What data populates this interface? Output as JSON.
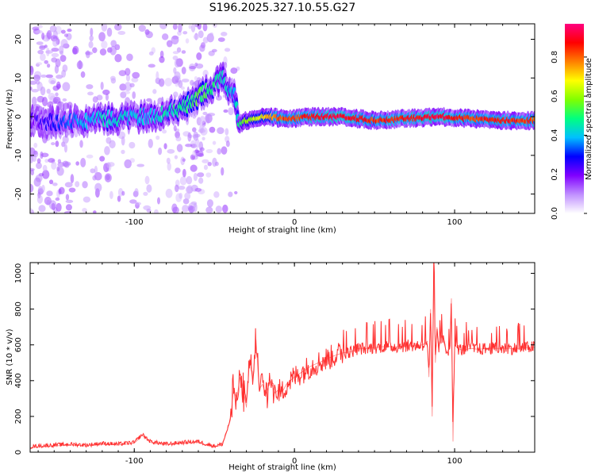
{
  "title": "S196.2025.327.10.55.G27",
  "chart_data": [
    {
      "type": "heatmap",
      "title": "S196.2025.327.10.55.G27",
      "xlabel": "Height of straight line (km)",
      "ylabel": "Frequency (Hz)",
      "xlim": [
        -165,
        150
      ],
      "ylim": [
        -25,
        24
      ],
      "xticks": [
        "-100",
        "0",
        "100"
      ],
      "xtick_values": [
        -100,
        0,
        100
      ],
      "yticks": [
        "20",
        "10",
        "0",
        "-10",
        "-20"
      ],
      "ytick_values": [
        20,
        10,
        0,
        -10,
        -20
      ],
      "colorbar": {
        "label": "Normalized spectral amplitude",
        "ticks": [
          "0.0",
          "0.2",
          "0.4",
          "0.6",
          "0.8"
        ],
        "tick_values": [
          0.0,
          0.2,
          0.4,
          0.6,
          0.8
        ],
        "range": [
          0,
          0.97
        ],
        "colors": [
          "#ffffff",
          "#c090ff",
          "#8000ff",
          "#0000ff",
          "#00c0ff",
          "#00ff80",
          "#80ff00",
          "#ffff00",
          "#ff8000",
          "#ff0000",
          "#ff0080"
        ]
      },
      "ridge": {
        "x": [
          -165,
          -150,
          -140,
          -130,
          -120,
          -110,
          -100,
          -90,
          -80,
          -70,
          -60,
          -50,
          -45,
          -40,
          -37,
          -35,
          -30,
          -20,
          -10,
          0,
          10,
          30,
          50,
          70,
          90,
          110,
          130,
          150
        ],
        "freq": [
          -1,
          -1.5,
          -1,
          -1,
          -0.5,
          -0.5,
          0,
          0,
          1,
          2,
          5,
          8,
          10,
          6,
          5,
          -2,
          -1,
          0,
          -0.3,
          -0.5,
          0,
          0,
          -1,
          -0.5,
          0,
          -0.5,
          -1,
          -1
        ],
        "amp": [
          0.2,
          0.3,
          0.35,
          0.4,
          0.45,
          0.45,
          0.4,
          0.4,
          0.45,
          0.5,
          0.55,
          0.5,
          0.45,
          0.4,
          0.4,
          0.5,
          0.6,
          0.7,
          0.85,
          0.85,
          0.9,
          0.95,
          0.85,
          0.9,
          0.95,
          0.85,
          0.9,
          0.85
        ]
      }
    },
    {
      "type": "line",
      "xlabel": "Height of straight line (km)",
      "ylabel": "SNR (10 * v/v)",
      "xlim": [
        -165,
        150
      ],
      "ylim": [
        0,
        1060
      ],
      "xticks": [
        "-100",
        "0",
        "100"
      ],
      "xtick_values": [
        -100,
        0,
        100
      ],
      "yticks": [
        "0",
        "200",
        "400",
        "600",
        "800",
        "1000"
      ],
      "ytick_values": [
        0,
        200,
        400,
        600,
        800,
        1000
      ],
      "color": "#ff3030",
      "series": [
        {
          "name": "SNR",
          "x": [
            -165,
            -160,
            -150,
            -140,
            -130,
            -120,
            -110,
            -100,
            -96,
            -95,
            -90,
            -80,
            -70,
            -60,
            -55,
            -50,
            -45,
            -42,
            -40,
            -38,
            -36,
            -34,
            -32,
            -30,
            -28,
            -26,
            -24,
            -22,
            -20,
            -18,
            -15,
            -12,
            -10,
            -8,
            -5,
            0,
            5,
            10,
            15,
            20,
            25,
            30,
            35,
            40,
            45,
            50,
            55,
            60,
            65,
            70,
            75,
            80,
            83,
            84,
            85,
            86,
            87,
            88,
            89,
            90,
            92,
            95,
            97,
            98,
            99,
            100,
            102,
            105,
            110,
            115,
            120,
            125,
            130,
            135,
            140,
            145,
            148,
            150
          ],
          "y": [
            25,
            30,
            35,
            40,
            35,
            45,
            40,
            50,
            85,
            95,
            55,
            40,
            50,
            55,
            40,
            30,
            40,
            120,
            180,
            350,
            300,
            420,
            360,
            250,
            520,
            400,
            630,
            350,
            380,
            320,
            400,
            330,
            350,
            330,
            380,
            420,
            450,
            480,
            500,
            520,
            540,
            555,
            560,
            580,
            580,
            585,
            590,
            590,
            590,
            595,
            595,
            600,
            620,
            420,
            800,
            200,
            1060,
            500,
            700,
            580,
            650,
            560,
            580,
            860,
            60,
            600,
            580,
            570,
            580,
            575,
            580,
            580,
            580,
            580,
            580,
            585,
            590,
            585
          ]
        }
      ]
    }
  ]
}
